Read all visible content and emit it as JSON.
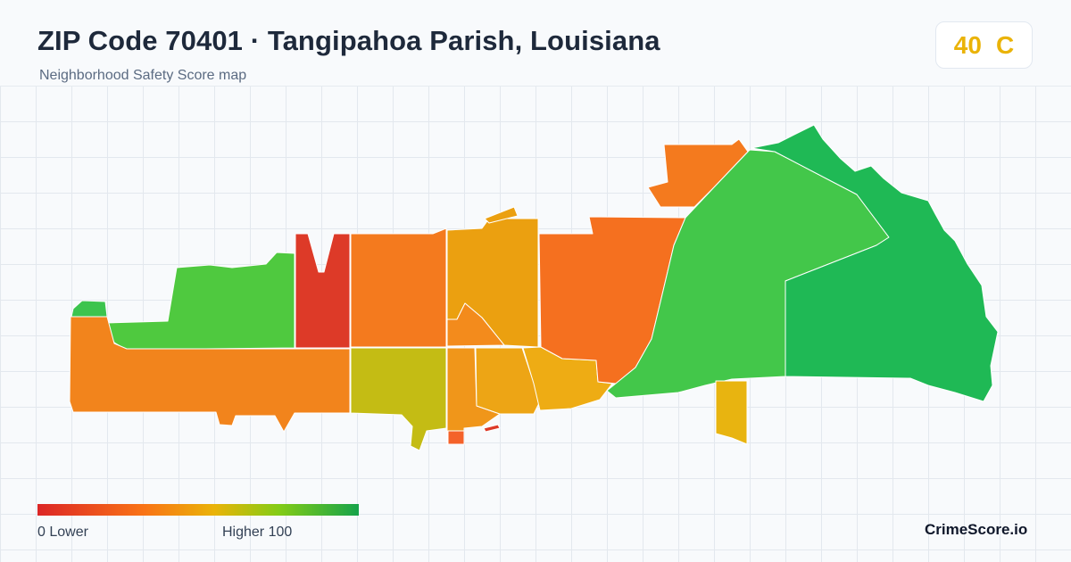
{
  "header": {
    "title": "ZIP Code 70401 · Tangipahoa Parish, Louisiana",
    "subtitle": "Neighborhood Safety Score map"
  },
  "score": {
    "value": "40",
    "grade": "C",
    "color": "#eab308"
  },
  "legend": {
    "low_label": "0  Lower",
    "high_label": "Higher  100",
    "colors": [
      "#dc2626",
      "#f97316",
      "#eab308",
      "#84cc16",
      "#16a34a"
    ]
  },
  "brand": "CrimeScore.io",
  "regions": [
    {
      "name": "northwest-strip",
      "color": "#4fc93f"
    },
    {
      "name": "west-central-red",
      "color": "#dd3a28"
    },
    {
      "name": "southwest-band",
      "color": "#f2841c"
    },
    {
      "name": "central-orange-north",
      "color": "#f47a1e"
    },
    {
      "name": "central-olive",
      "color": "#c4bc14"
    },
    {
      "name": "central-amber-north",
      "color": "#eba010"
    },
    {
      "name": "central-orange-wedge",
      "color": "#f38b1c"
    },
    {
      "name": "south-amber-west",
      "color": "#f0961a"
    },
    {
      "name": "south-amber-mid",
      "color": "#eda515"
    },
    {
      "name": "south-amber-east",
      "color": "#eeac14"
    },
    {
      "name": "east-central-orange",
      "color": "#f5701f"
    },
    {
      "name": "northeast-orange",
      "color": "#f47a1e"
    },
    {
      "name": "east-green-large",
      "color": "#43c74a"
    },
    {
      "name": "east-green-far",
      "color": "#1fb955"
    },
    {
      "name": "south-detached-yellow",
      "color": "#e8b410"
    }
  ]
}
